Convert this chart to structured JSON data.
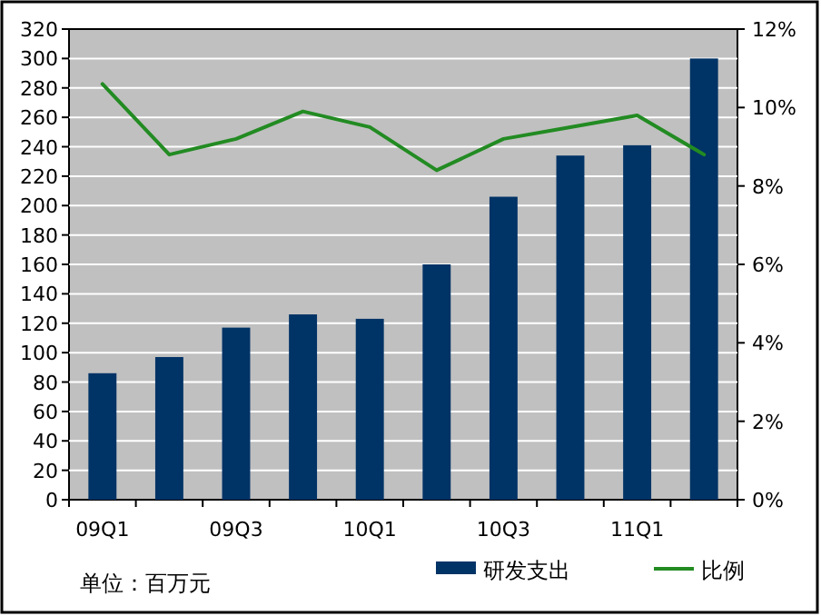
{
  "chart_data": {
    "type": "bar",
    "categories": [
      "09Q1",
      null,
      "09Q3",
      null,
      "10Q1",
      null,
      "10Q3",
      null,
      "11Q1",
      null
    ],
    "series": [
      {
        "name": "研发支出",
        "color": "#003366",
        "values": [
          86,
          97,
          117,
          126,
          123,
          160,
          206,
          234,
          241,
          300
        ]
      },
      {
        "name": "比例",
        "type": "line",
        "axis": "y2",
        "color": "#228b22",
        "values": [
          10.6,
          8.8,
          9.2,
          9.9,
          9.5,
          8.4,
          9.2,
          9.5,
          9.8,
          8.8
        ]
      }
    ],
    "ylim": [
      0,
      320
    ],
    "yticks": [
      0,
      20,
      40,
      60,
      80,
      100,
      120,
      140,
      160,
      180,
      200,
      220,
      240,
      260,
      280,
      300,
      320
    ],
    "y2lim": [
      0,
      12
    ],
    "y2ticks": [
      {
        "value": 0,
        "label": "0%"
      },
      {
        "value": 2,
        "label": "2%"
      },
      {
        "value": 4,
        "label": "4%"
      },
      {
        "value": 6,
        "label": "6%"
      },
      {
        "value": 8,
        "label": "8%"
      },
      {
        "value": 10,
        "label": "10%"
      },
      {
        "value": 12,
        "label": "12%"
      }
    ],
    "grid": "y",
    "legend": "bottom",
    "marker": "none",
    "annotations": [
      "单位：百万元"
    ]
  }
}
